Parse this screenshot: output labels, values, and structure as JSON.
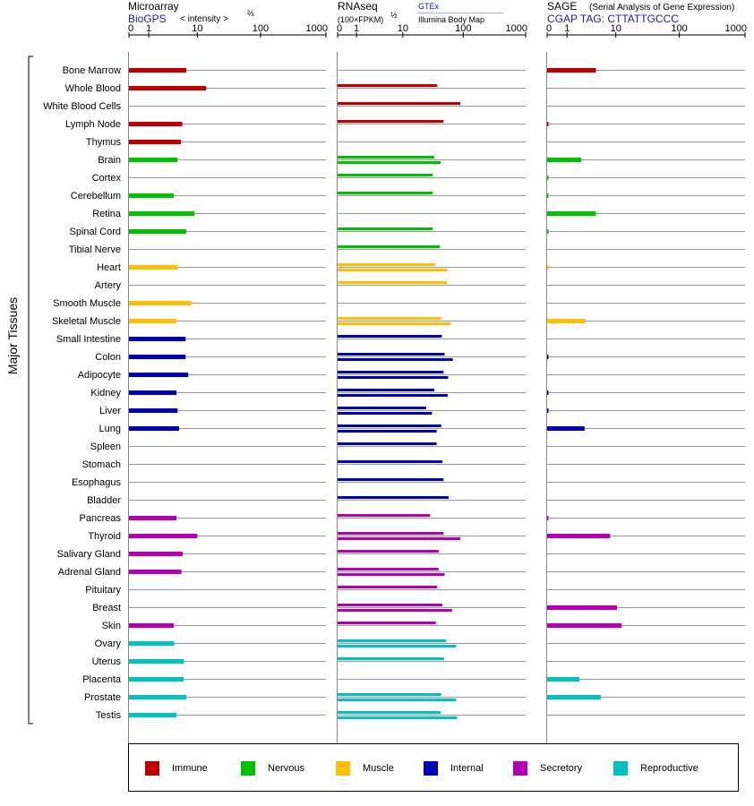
{
  "header": {
    "microarray": {
      "title": "Microarray",
      "source": "BioGPS",
      "unit_main": "< intensity >",
      "unit_exp": "⅔"
    },
    "rnaseq": {
      "title": "RNAseq",
      "unit_main": "(100×FPKM)",
      "unit_exp": "½",
      "source_a": "GTEx",
      "source_b": "Illumina Body Map"
    },
    "sage": {
      "title": "SAGE",
      "subtitle": "(Serial Analysis of Gene Expression)",
      "source": "CGAP TAG: CTTATTGCCC"
    }
  },
  "y_group_label": "Major Tissues",
  "colors": {
    "Immune": "#c00000",
    "Nervous": "#00c000",
    "Muscle": "#ffc000",
    "Internal": "#0000b4",
    "Secretory": "#b400b4",
    "Reproductive": "#00c0c0"
  },
  "legend": [
    {
      "label": "Immune",
      "color": "#c00000"
    },
    {
      "label": "Nervous",
      "color": "#00c000"
    },
    {
      "label": "Muscle",
      "color": "#ffc000"
    },
    {
      "label": "Internal",
      "color": "#0000b4"
    },
    {
      "label": "Secretory",
      "color": "#b400b4"
    },
    {
      "label": "Reproductive",
      "color": "#00c0c0"
    }
  ],
  "chart_data": {
    "type": "bar",
    "orientation": "horizontal",
    "x_scale": "log",
    "xlim": [
      0,
      1000
    ],
    "x_ticks": [
      "0",
      "1",
      "10",
      "100",
      "1000"
    ],
    "tissues": [
      {
        "name": "Bone Marrow",
        "group": "Immune",
        "microarray": 6.5,
        "rnaseq": [],
        "sage": 4.5
      },
      {
        "name": "Whole Blood",
        "group": "Immune",
        "microarray": 14,
        "rnaseq": [
          38
        ],
        "sage": 0
      },
      {
        "name": "White Blood Cells",
        "group": "Immune",
        "microarray": 0,
        "rnaseq": [
          90
        ],
        "sage": null
      },
      {
        "name": "Lymph Node",
        "group": "Immune",
        "microarray": 5.5,
        "rnaseq": [
          48
        ],
        "sage": 0.05
      },
      {
        "name": "Thymus",
        "group": "Immune",
        "microarray": 5.2,
        "rnaseq": [],
        "sage": null
      },
      {
        "name": "Brain",
        "group": "Nervous",
        "microarray": 4.5,
        "rnaseq": [
          34,
          43
        ],
        "sage": 2.3
      },
      {
        "name": "Cortex",
        "group": "Nervous",
        "microarray": null,
        "rnaseq": [
          32
        ],
        "sage": 0.03
      },
      {
        "name": "Cerebellum",
        "group": "Nervous",
        "microarray": 3.8,
        "rnaseq": [
          32
        ],
        "sage": 0.03
      },
      {
        "name": "Retina",
        "group": "Nervous",
        "microarray": 9,
        "rnaseq": [],
        "sage": 4.5
      },
      {
        "name": "Spinal Cord",
        "group": "Nervous",
        "microarray": 6.5,
        "rnaseq": [
          32
        ],
        "sage": 0.03
      },
      {
        "name": "Tibial Nerve",
        "group": "Nervous",
        "microarray": null,
        "rnaseq": [
          42
        ],
        "sage": null
      },
      {
        "name": "Heart",
        "group": "Muscle",
        "microarray": 4.5,
        "rnaseq": [
          35,
          55
        ],
        "sage": 0.02
      },
      {
        "name": "Artery",
        "group": "Muscle",
        "microarray": null,
        "rnaseq": [
          55
        ],
        "sage": null
      },
      {
        "name": "Smooth Muscle",
        "group": "Muscle",
        "microarray": 8,
        "rnaseq": [],
        "sage": null
      },
      {
        "name": "Skeletal Muscle",
        "group": "Muscle",
        "microarray": 4.3,
        "rnaseq": [
          44,
          63
        ],
        "sage": 2.8
      },
      {
        "name": "Small Intestine",
        "group": "Internal",
        "microarray": 6.3,
        "rnaseq": [
          45
        ],
        "sage": null
      },
      {
        "name": "Colon",
        "group": "Internal",
        "microarray": 6.3,
        "rnaseq": [
          50,
          68
        ],
        "sage": 0.03
      },
      {
        "name": "Adipocyte",
        "group": "Internal",
        "microarray": 7,
        "rnaseq": [
          48,
          57
        ],
        "sage": null
      },
      {
        "name": "Kidney",
        "group": "Internal",
        "microarray": 4.3,
        "rnaseq": [
          34,
          56
        ],
        "sage": 0.03
      },
      {
        "name": "Liver",
        "group": "Internal",
        "microarray": 4.5,
        "rnaseq": [
          25,
          31
        ],
        "sage": 0.03
      },
      {
        "name": "Lung",
        "group": "Internal",
        "microarray": 4.8,
        "rnaseq": [
          44,
          37
        ],
        "sage": 2.7
      },
      {
        "name": "Spleen",
        "group": "Internal",
        "microarray": null,
        "rnaseq": [
          37
        ],
        "sage": null
      },
      {
        "name": "Stomach",
        "group": "Internal",
        "microarray": null,
        "rnaseq": [
          46
        ],
        "sage": null
      },
      {
        "name": "Esophagus",
        "group": "Internal",
        "microarray": null,
        "rnaseq": [
          48
        ],
        "sage": null
      },
      {
        "name": "Bladder",
        "group": "Internal",
        "microarray": null,
        "rnaseq": [
          58
        ],
        "sage": null
      },
      {
        "name": "Pancreas",
        "group": "Secretory",
        "microarray": 4.3,
        "rnaseq": [
          29
        ],
        "sage": 0.03
      },
      {
        "name": "Thyroid",
        "group": "Secretory",
        "microarray": 10,
        "rnaseq": [
          48,
          90
        ],
        "sage": 8
      },
      {
        "name": "Salivary Gland",
        "group": "Secretory",
        "microarray": 5.6,
        "rnaseq": [
          40
        ],
        "sage": null
      },
      {
        "name": "Adrenal Gland",
        "group": "Secretory",
        "microarray": 5.3,
        "rnaseq": [
          40,
          50
        ],
        "sage": null
      },
      {
        "name": "Pituitary",
        "group": "Secretory",
        "microarray": null,
        "rnaseq": [
          38
        ],
        "sage": null
      },
      {
        "name": "Breast",
        "group": "Secretory",
        "microarray": null,
        "rnaseq": [
          46,
          66
        ],
        "sage": 10.5
      },
      {
        "name": "Skin",
        "group": "Secretory",
        "microarray": 3.8,
        "rnaseq": [
          36
        ],
        "sage": 12.5
      },
      {
        "name": "Ovary",
        "group": "Reproductive",
        "microarray": 3.9,
        "rnaseq": [
          53,
          77
        ],
        "sage": null
      },
      {
        "name": "Uterus",
        "group": "Reproductive",
        "microarray": 5.9,
        "rnaseq": [
          49
        ],
        "sage": null
      },
      {
        "name": "Placenta",
        "group": "Reproductive",
        "microarray": 5.8,
        "rnaseq": [],
        "sage": 2.1
      },
      {
        "name": "Prostate",
        "group": "Reproductive",
        "microarray": 6.5,
        "rnaseq": [
          44,
          77
        ],
        "sage": 5.5
      },
      {
        "name": "Testis",
        "group": "Reproductive",
        "microarray": 4.3,
        "rnaseq": [
          43,
          80
        ],
        "sage": null
      }
    ]
  }
}
